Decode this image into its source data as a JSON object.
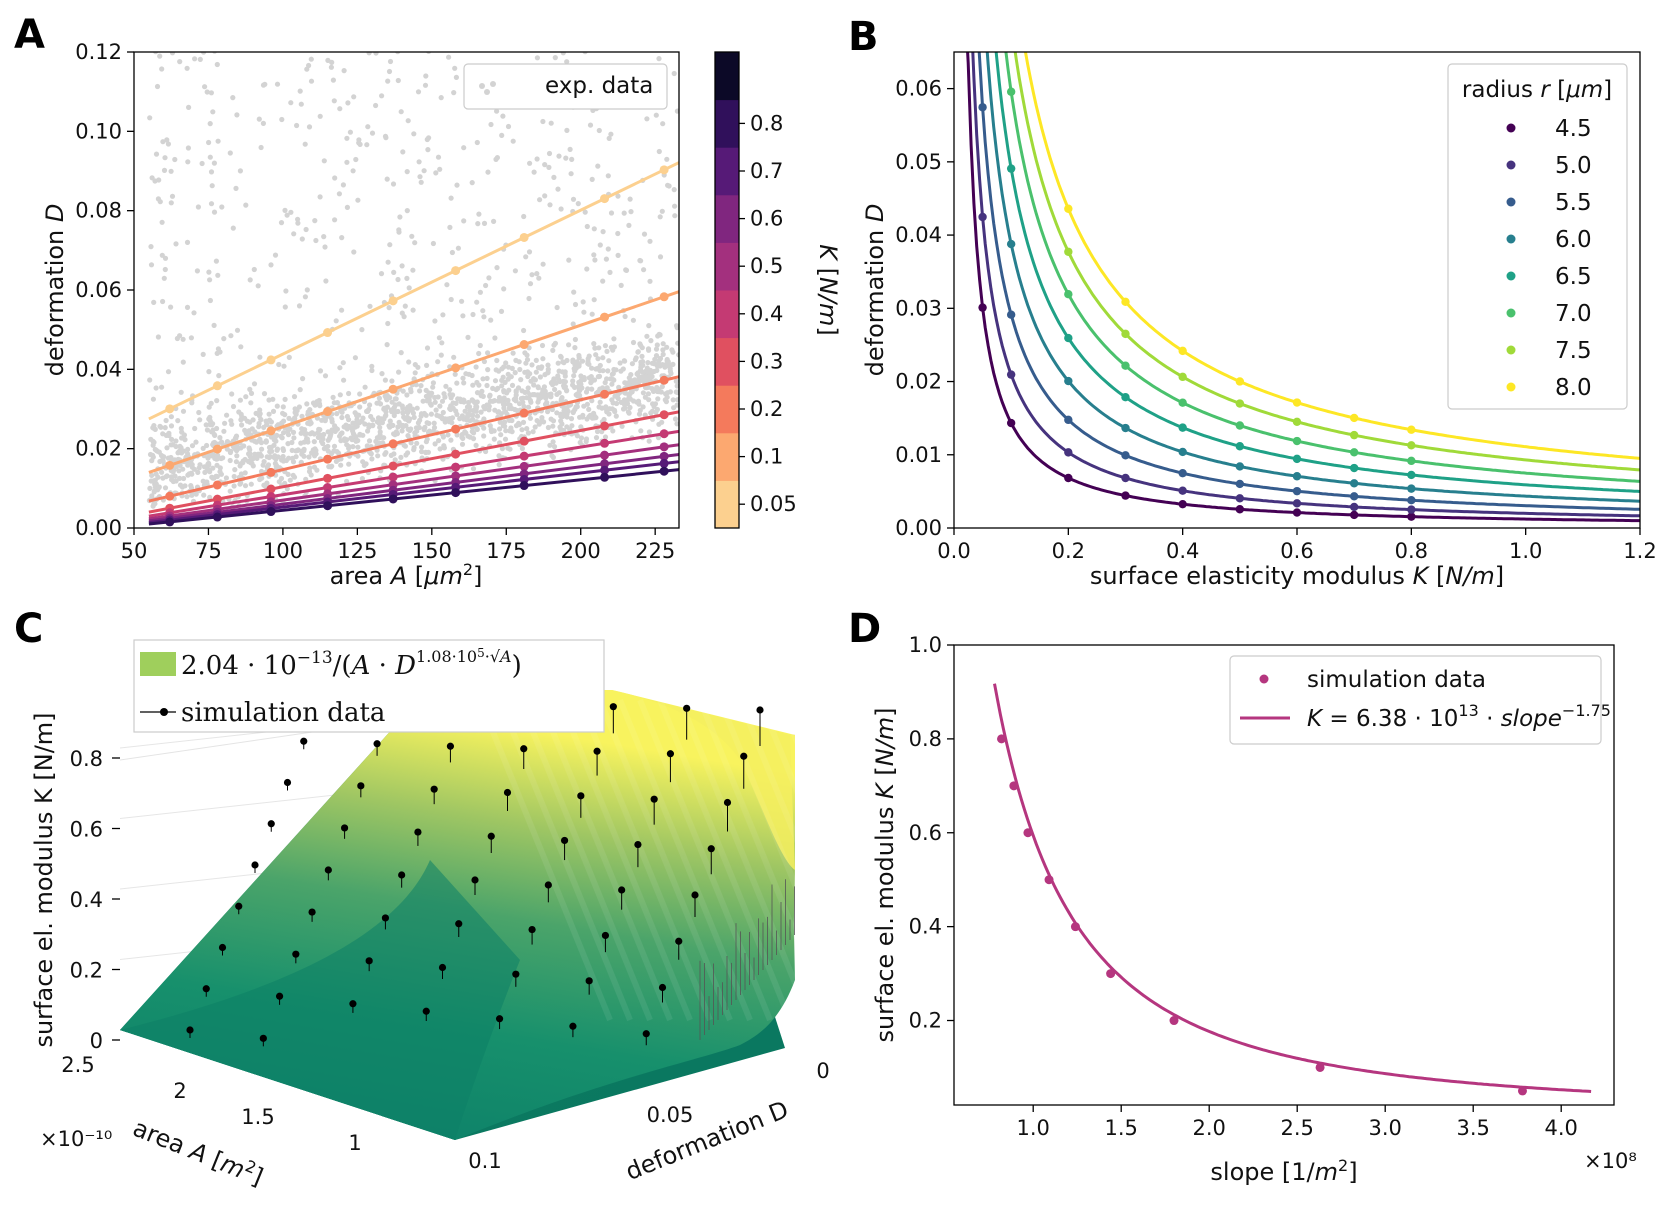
{
  "panels": {
    "A": "A",
    "B": "B",
    "C": "C",
    "D": "D"
  },
  "chart_data": [
    {
      "panel": "A",
      "type": "scatter",
      "xlabel": "area A [μm²]",
      "ylabel": "deformation D",
      "xlim": [
        50,
        233
      ],
      "ylim": [
        0,
        0.12
      ],
      "xticks": [
        "50",
        "75",
        "100",
        "125",
        "150",
        "175",
        "200",
        "225"
      ],
      "yticks": [
        "0.00",
        "0.02",
        "0.04",
        "0.06",
        "0.08",
        "0.10",
        "0.12"
      ],
      "legend": [
        "exp. data"
      ],
      "legend_loc": "top-right",
      "colorbar": {
        "label": "K [N/m]",
        "ticks": [
          "0.05",
          "0.1",
          "0.2",
          "0.3",
          "0.4",
          "0.5",
          "0.6",
          "0.7",
          "0.8"
        ],
        "colors": [
          "#fcd08f",
          "#fca870",
          "#f47a5c",
          "#e05060",
          "#c43a73",
          "#a3307e",
          "#80267f",
          "#561a77",
          "#30105b",
          "#0c0927"
        ]
      },
      "background_series": {
        "name": "exp. data",
        "color": "#d3d3d3",
        "n_points": 2200
      },
      "points_x": [
        62,
        78,
        96,
        115,
        137,
        158,
        181,
        208,
        228
      ],
      "series": [
        {
          "K": "0.05",
          "color": "#fcd08f",
          "y0": 0.0275,
          "slope": 0.000363
        },
        {
          "K": "0.1",
          "color": "#fca870",
          "y0": 0.014,
          "slope": 0.000256
        },
        {
          "K": "0.2",
          "color": "#f47a5c",
          "y0": 0.0068,
          "slope": 0.000176
        },
        {
          "K": "0.3",
          "color": "#e05060",
          "y0": 0.004,
          "slope": 0.000142
        },
        {
          "K": "0.4",
          "color": "#c43a73",
          "y0": 0.003,
          "slope": 0.00012
        },
        {
          "K": "0.5",
          "color": "#a3307e",
          "y0": 0.0023,
          "slope": 0.000105
        },
        {
          "K": "0.6",
          "color": "#80267f",
          "y0": 0.0018,
          "slope": 9.4e-05
        },
        {
          "K": "0.7",
          "color": "#561a77",
          "y0": 0.0014,
          "slope": 8.6e-05
        },
        {
          "K": "0.8",
          "color": "#30105b",
          "y0": 0.001,
          "slope": 7.7e-05
        }
      ]
    },
    {
      "panel": "B",
      "type": "line",
      "xlabel": "surface elasticity modulus K [N/m]",
      "ylabel": "deformation D",
      "xlim": [
        0,
        1.2
      ],
      "ylim": [
        0,
        0.065
      ],
      "xticks": [
        "0.0",
        "0.2",
        "0.4",
        "0.6",
        "0.8",
        "1.0",
        "1.2"
      ],
      "yticks": [
        "0.00",
        "0.01",
        "0.02",
        "0.03",
        "0.04",
        "0.05",
        "0.06"
      ],
      "legend_title": "radius r [μm]",
      "legend_loc": "top-right",
      "points_K": [
        0.05,
        0.1,
        0.2,
        0.3,
        0.4,
        0.5,
        0.6,
        0.7,
        0.8
      ],
      "series": [
        {
          "name": "4.5",
          "color": "#440154",
          "c": 0.00122,
          "n": 1.07
        },
        {
          "name": "5.0",
          "color": "#46337e",
          "c": 0.002,
          "n": 1.02
        },
        {
          "name": "5.5",
          "color": "#365c8d",
          "c": 0.00305,
          "n": 0.98
        },
        {
          "name": "6.0",
          "color": "#277f8e",
          "c": 0.00435,
          "n": 0.95
        },
        {
          "name": "6.5",
          "color": "#1fa187",
          "c": 0.0059,
          "n": 0.92
        },
        {
          "name": "7.0",
          "color": "#4ac16d",
          "c": 0.0075,
          "n": 0.9
        },
        {
          "name": "7.5",
          "color": "#a0da39",
          "c": 0.0093,
          "n": 0.87
        },
        {
          "name": "8.0",
          "color": "#fde725",
          "c": 0.0111,
          "n": 0.85
        }
      ]
    },
    {
      "panel": "C",
      "type": "surface3d",
      "xlabel": "deformation D",
      "ylabel": "area A [m²]",
      "zlabel": "surface el. modulus K [N/m]",
      "xticks": [
        "0",
        "0.05",
        "0.1"
      ],
      "yticks": [
        "2.5",
        "2",
        "1.5",
        "1"
      ],
      "yoffset": "×10⁻¹⁰",
      "zticks": [
        "0",
        "0.2",
        "0.4",
        "0.6",
        "0.8"
      ],
      "legend": [
        "2.04 · 10⁻¹³/(A · D^(1.08·10⁵·√A))",
        "simulation data"
      ],
      "legend_loc": "top-left"
    },
    {
      "panel": "D",
      "type": "line",
      "xlabel": "slope [1/m²]",
      "ylabel": "surface el. modulus K [N/m]",
      "xlim": [
        0.55,
        4.3
      ],
      "ylim": [
        0.02,
        1.0
      ],
      "x_offset": "×10⁸",
      "xticks": [
        "1.0",
        "1.5",
        "2.0",
        "2.5",
        "3.0",
        "3.5",
        "4.0"
      ],
      "yticks": [
        "0.2",
        "0.4",
        "0.6",
        "0.8",
        "1.0"
      ],
      "legend": [
        "simulation data",
        "K = 6.38 · 10¹³ · slope⁻¹·⁷⁵"
      ],
      "legend_loc": "top-right",
      "color": "#b5367f",
      "x": [
        0.82,
        0.89,
        0.97,
        1.09,
        1.24,
        1.44,
        1.8,
        2.63,
        3.78
      ],
      "y": [
        0.8,
        0.7,
        0.6,
        0.5,
        0.4,
        0.3,
        0.2,
        0.1,
        0.05
      ]
    }
  ]
}
